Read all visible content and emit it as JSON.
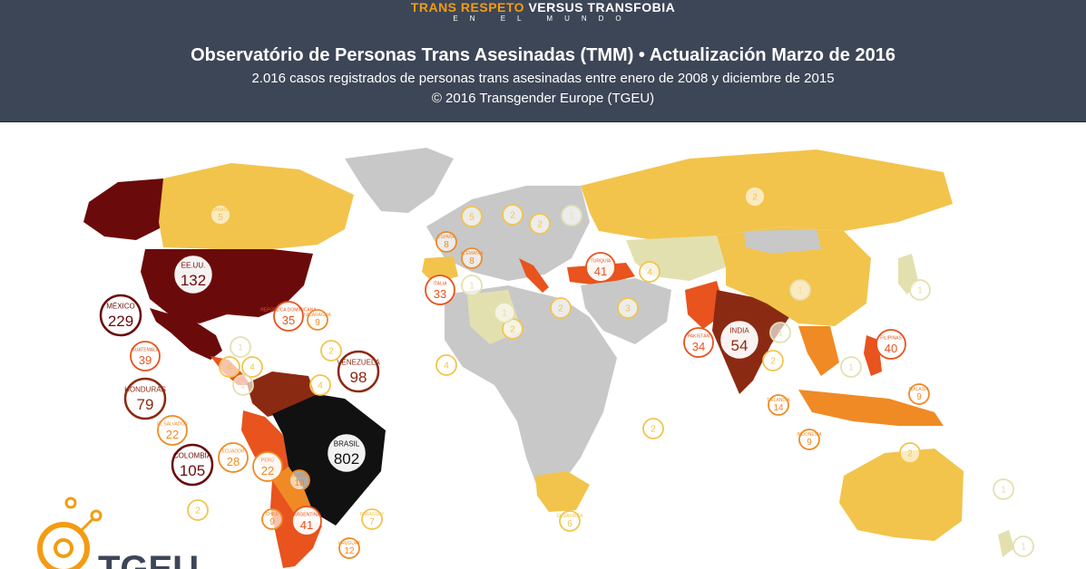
{
  "header": {
    "brand_part1": "TRANS RESPETO",
    "brand_part2": "VERSUS TRANSFOBIA",
    "brand_sub": "EN EL MUNDO",
    "title": "Observatório de Personas Trans Asesinadas (TMM) • Actualización Marzo de 2016",
    "subtitle": "2.016 casos registrados de personas trans asesinadas entre enero de 2008 y diciembre de 2015",
    "credit": "© 2016 Transgender Europe (TGEU)"
  },
  "logo": {
    "text": "TGEU"
  },
  "colors": {
    "ocean": "#ffffff",
    "none": "#c8c8c8",
    "low1": "#e3e0b0",
    "low": "#f2c44c",
    "mid": "#f08a24",
    "high": "#e8531e",
    "higher": "#8b2a12",
    "top": "#6b0a0a",
    "max": "#111111"
  },
  "markers": [
    {
      "name": "EE.UU.",
      "value": "132",
      "size": "large",
      "color": "#6b0a0a"
    },
    {
      "name": "MÉXICO",
      "value": "229",
      "size": "large",
      "color": "#6b0a0a"
    },
    {
      "name": "BRASIL",
      "value": "802",
      "size": "large",
      "color": "#111111"
    },
    {
      "name": "COLOMBIA",
      "value": "105",
      "size": "large",
      "color": "#6b0a0a"
    },
    {
      "name": "VENEZUELA",
      "value": "98",
      "size": "large",
      "color": "#8b2a12"
    },
    {
      "name": "HONDURAS",
      "value": "79",
      "size": "large",
      "color": "#8b2a12"
    },
    {
      "name": "INDIA",
      "value": "54",
      "size": "large",
      "color": "#8b2a12"
    },
    {
      "name": "TURQUÍA",
      "value": "41",
      "size": "mid",
      "color": "#e8531e"
    },
    {
      "name": "ARGENTINA",
      "value": "41",
      "size": "mid",
      "color": "#e8531e"
    },
    {
      "name": "FILIPINAS",
      "value": "40",
      "size": "mid",
      "color": "#e8531e"
    },
    {
      "name": "GUATEMALA",
      "value": "39",
      "size": "mid",
      "color": "#e8531e"
    },
    {
      "name": "REPÚBLICA DOMINICANA",
      "value": "35",
      "size": "mid",
      "color": "#e8531e"
    },
    {
      "name": "PAKISTÁN",
      "value": "34",
      "size": "mid",
      "color": "#e8531e"
    },
    {
      "name": "ITALIA",
      "value": "33",
      "size": "mid",
      "color": "#e8531e"
    },
    {
      "name": "ECUADOR",
      "value": "28",
      "size": "mid",
      "color": "#f08a24"
    },
    {
      "name": "EL SALVADOR",
      "value": "22",
      "size": "mid",
      "color": "#f08a24"
    },
    {
      "name": "PERÚ",
      "value": "22",
      "size": "mid",
      "color": "#f08a24"
    },
    {
      "name": "TAILANDIA",
      "value": "14",
      "size": "small",
      "color": "#f08a24"
    },
    {
      "name": "BOLIVIA",
      "value": "13",
      "size": "small",
      "color": "#f08a24"
    },
    {
      "name": "URUGUAY",
      "value": "12",
      "size": "small",
      "color": "#f08a24"
    },
    {
      "name": "NICARAGUA",
      "value": "9",
      "size": "small",
      "color": "#f08a24"
    },
    {
      "name": "MALASIA",
      "value": "9",
      "size": "small",
      "color": "#f08a24"
    },
    {
      "name": "INDONESIA",
      "value": "9",
      "size": "small",
      "color": "#f08a24"
    },
    {
      "name": "CHILE",
      "value": "9",
      "size": "small",
      "color": "#f08a24"
    },
    {
      "name": "ALEMANIA",
      "value": "8",
      "size": "small",
      "color": "#f08a24"
    },
    {
      "name": "ESPAÑA",
      "value": "8",
      "size": "small",
      "color": "#f08a24"
    },
    {
      "name": "PARAGUAY",
      "value": "7",
      "size": "small",
      "color": "#f2c44c"
    },
    {
      "name": "SUDÁFRICA",
      "value": "6",
      "size": "small",
      "color": "#f2c44c"
    },
    {
      "name": "CANADÁ",
      "value": "5",
      "size": "small",
      "color": "#f2c44c"
    },
    {
      "name": "",
      "value": "5",
      "size": "small",
      "color": "#f2c44c"
    },
    {
      "name": "",
      "value": "4",
      "size": "small",
      "color": "#f2c44c"
    },
    {
      "name": "",
      "value": "4",
      "size": "small",
      "color": "#f2c44c"
    },
    {
      "name": "",
      "value": "4",
      "size": "small",
      "color": "#f2c44c"
    },
    {
      "name": "",
      "value": "4",
      "size": "small",
      "color": "#f2c44c"
    },
    {
      "name": "",
      "value": "4",
      "size": "small",
      "color": "#f2c44c"
    },
    {
      "name": "",
      "value": "3",
      "size": "small",
      "color": "#f2c44c"
    },
    {
      "name": "",
      "value": "2",
      "size": "small",
      "color": "#f2c44c"
    },
    {
      "name": "",
      "value": "2",
      "size": "small",
      "color": "#f2c44c"
    },
    {
      "name": "",
      "value": "2",
      "size": "small",
      "color": "#f2c44c"
    },
    {
      "name": "",
      "value": "2",
      "size": "small",
      "color": "#f2c44c"
    },
    {
      "name": "",
      "value": "2",
      "size": "small",
      "color": "#f2c44c"
    },
    {
      "name": "",
      "value": "2",
      "size": "small",
      "color": "#f2c44c"
    },
    {
      "name": "",
      "value": "2",
      "size": "small",
      "color": "#f2c44c"
    },
    {
      "name": "",
      "value": "2",
      "size": "small",
      "color": "#f2c44c"
    },
    {
      "name": "",
      "value": "2",
      "size": "small",
      "color": "#f2c44c"
    },
    {
      "name": "",
      "value": "2",
      "size": "small",
      "color": "#f2c44c"
    },
    {
      "name": "",
      "value": "1",
      "size": "small",
      "color": "#e3e0b0"
    },
    {
      "name": "",
      "value": "1",
      "size": "small",
      "color": "#e3e0b0"
    },
    {
      "name": "",
      "value": "1",
      "size": "small",
      "color": "#e3e0b0"
    },
    {
      "name": "",
      "value": "1",
      "size": "small",
      "color": "#e3e0b0"
    },
    {
      "name": "",
      "value": "1",
      "size": "small",
      "color": "#e3e0b0"
    },
    {
      "name": "",
      "value": "1",
      "size": "small",
      "color": "#e3e0b0"
    },
    {
      "name": "",
      "value": "1",
      "size": "small",
      "color": "#e3e0b0"
    },
    {
      "name": "",
      "value": "1",
      "size": "small",
      "color": "#e3e0b0"
    },
    {
      "name": "",
      "value": "1",
      "size": "small",
      "color": "#e3e0b0"
    },
    {
      "name": "",
      "value": "1",
      "size": "small",
      "color": "#e3e0b0"
    },
    {
      "name": "",
      "value": "1",
      "size": "small",
      "color": "#e3e0b0"
    }
  ]
}
